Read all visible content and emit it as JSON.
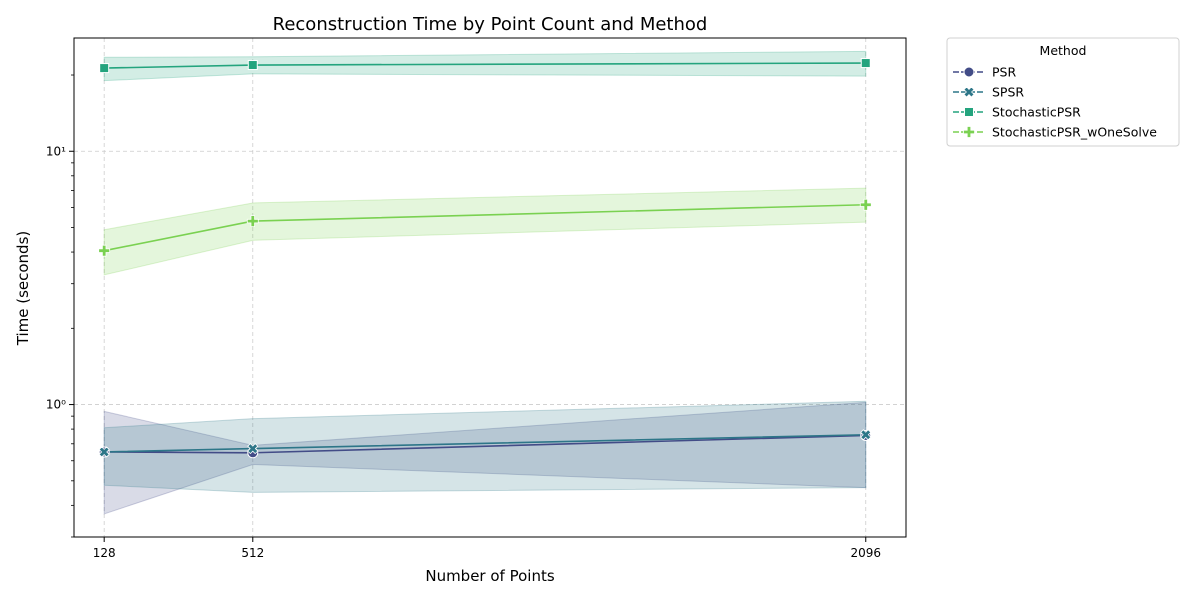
{
  "chart_data": {
    "type": "line",
    "title": "Reconstruction Time by Point Count and Method",
    "xlabel": "Number of Points",
    "ylabel": "Time (seconds)",
    "x": [
      128,
      512,
      2096
    ],
    "x_tick_labels": [
      "128",
      "512",
      "2096"
    ],
    "y_scale": "log",
    "ylim": [
      0.3,
      28
    ],
    "y_ticks": [
      1,
      10
    ],
    "y_tick_labels": [
      "10⁰",
      "10¹"
    ],
    "grid": true,
    "legend": {
      "title": "Method",
      "placement": "outside-top-right"
    },
    "series": [
      {
        "name": "PSR",
        "color": "#424c87",
        "marker": "circle",
        "values": [
          0.65,
          0.645,
          0.755
        ],
        "ci_low": [
          0.37,
          0.58,
          0.47
        ],
        "ci_high": [
          0.94,
          0.69,
          1.02
        ]
      },
      {
        "name": "SPSR",
        "color": "#2d7688",
        "marker": "x",
        "values": [
          0.65,
          0.67,
          0.76
        ],
        "ci_low": [
          0.48,
          0.45,
          0.47
        ],
        "ci_high": [
          0.81,
          0.88,
          1.03
        ]
      },
      {
        "name": "StochasticPSR",
        "color": "#24a47e",
        "marker": "square",
        "values": [
          21.3,
          21.9,
          22.3
        ],
        "ci_low": [
          19.0,
          20.2,
          19.8
        ],
        "ci_high": [
          23.5,
          23.6,
          24.8
        ]
      },
      {
        "name": "StochasticPSR_wOneSolve",
        "color": "#7ad151",
        "marker": "plus",
        "values": [
          4.05,
          5.3,
          6.15
        ],
        "ci_low": [
          3.25,
          4.45,
          5.25
        ],
        "ci_high": [
          4.9,
          6.25,
          7.15
        ]
      }
    ]
  }
}
